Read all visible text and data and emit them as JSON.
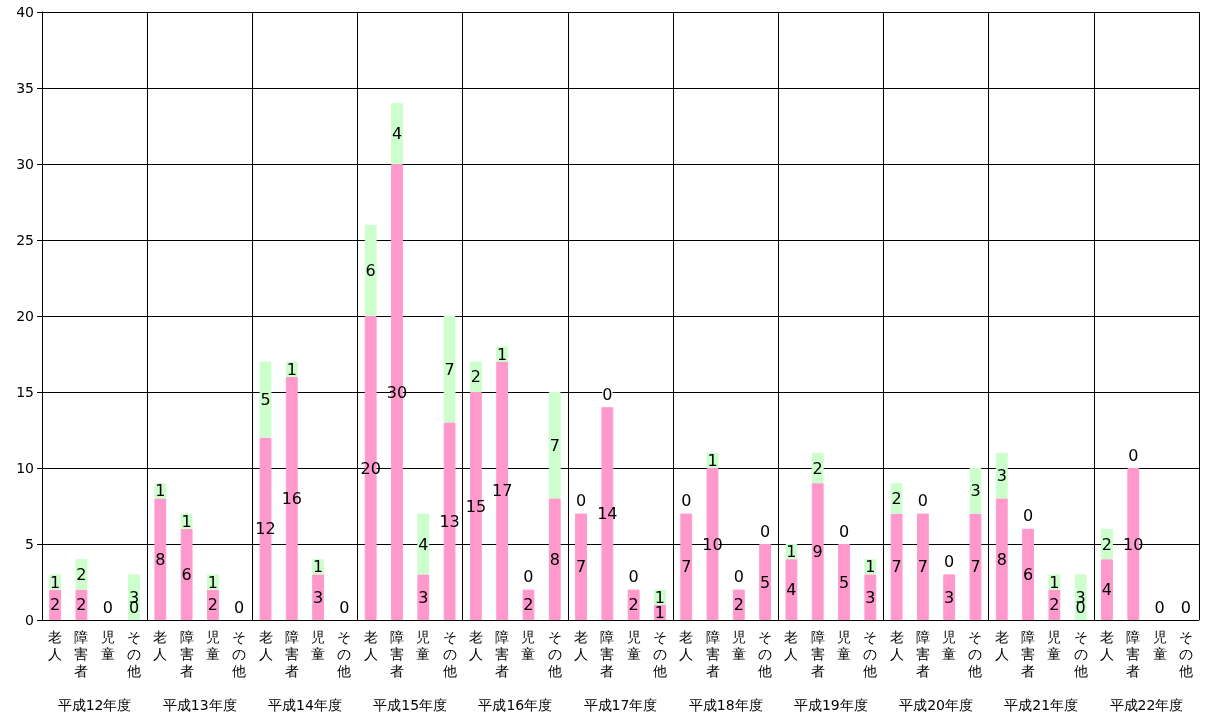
{
  "chart_data": {
    "type": "bar",
    "stacked": true,
    "grid": "y",
    "categories": [
      "老人",
      "障害者",
      "児童",
      "その他",
      "老人",
      "障害者",
      "児童",
      "その他",
      "老人",
      "障害者",
      "児童",
      "その他",
      "老人",
      "障害者",
      "児童",
      "その他",
      "老人",
      "障害者",
      "児童",
      "その他",
      "老人",
      "障害者",
      "児童",
      "その他",
      "老人",
      "障害者",
      "児童",
      "その他",
      "老人",
      "障害者",
      "児童",
      "その他",
      "老人",
      "障害者",
      "児童",
      "その他",
      "老人",
      "障害者",
      "児童",
      "その他",
      "老人",
      "障害者",
      "児童",
      "その他"
    ],
    "annotations": [
      "平成12年度",
      "平成13年度",
      "平成14年度",
      "平成15年度",
      "平成16年度",
      "平成17年度",
      "平成18年度",
      "平成19年度",
      "平成20年度",
      "平成21年度",
      "平成22年度"
    ],
    "ylim": [
      0,
      40
    ],
    "yticks": [
      0,
      5,
      10,
      15,
      20,
      25,
      30,
      35,
      40
    ],
    "series": [
      {
        "color": "#ff99cc",
        "values": [
          2,
          2,
          0,
          0,
          8,
          6,
          2,
          0,
          12,
          16,
          3,
          0,
          20,
          30,
          3,
          13,
          15,
          17,
          2,
          8,
          7,
          14,
          2,
          1,
          7,
          10,
          2,
          5,
          4,
          9,
          5,
          3,
          7,
          7,
          3,
          7,
          8,
          6,
          2,
          0,
          4,
          10,
          0,
          0
        ],
        "value_labels": [
          "2",
          "2",
          "0",
          "0",
          "8",
          "6",
          "2",
          "0",
          "12",
          "16",
          "3",
          "0",
          "20",
          "30",
          "3",
          "13",
          "15",
          "17",
          "2",
          "8",
          "7",
          "14",
          "2",
          "1",
          "7",
          "10",
          "2",
          "5",
          "4",
          "9",
          "5",
          "3",
          "7",
          "7",
          "3",
          "7",
          "8",
          "6",
          "2",
          "0",
          "4",
          "10",
          "0",
          "0"
        ]
      },
      {
        "color": "#ccffcc",
        "values": [
          1,
          2,
          0,
          3,
          1,
          1,
          1,
          0,
          5,
          1,
          1,
          0,
          6,
          4,
          4,
          7,
          2,
          1,
          0,
          7,
          0,
          0,
          0,
          1,
          0,
          1,
          0,
          0,
          1,
          2,
          0,
          1,
          2,
          0,
          0,
          3,
          3,
          0,
          1,
          3,
          2,
          0,
          0,
          0
        ],
        "value_labels": [
          "1",
          "2",
          null,
          "3",
          "1",
          "1",
          "1",
          null,
          "5",
          "1",
          "1",
          null,
          "6",
          "4",
          "4",
          "7",
          "2",
          "1",
          "0",
          "7",
          "0",
          "0",
          "0",
          "1",
          "0",
          "1",
          "0",
          "0",
          "1",
          "2",
          "0",
          "1",
          "2",
          "0",
          "0",
          "3",
          "3",
          "0",
          "1",
          "3",
          "2",
          "0",
          null,
          null
        ]
      }
    ]
  }
}
